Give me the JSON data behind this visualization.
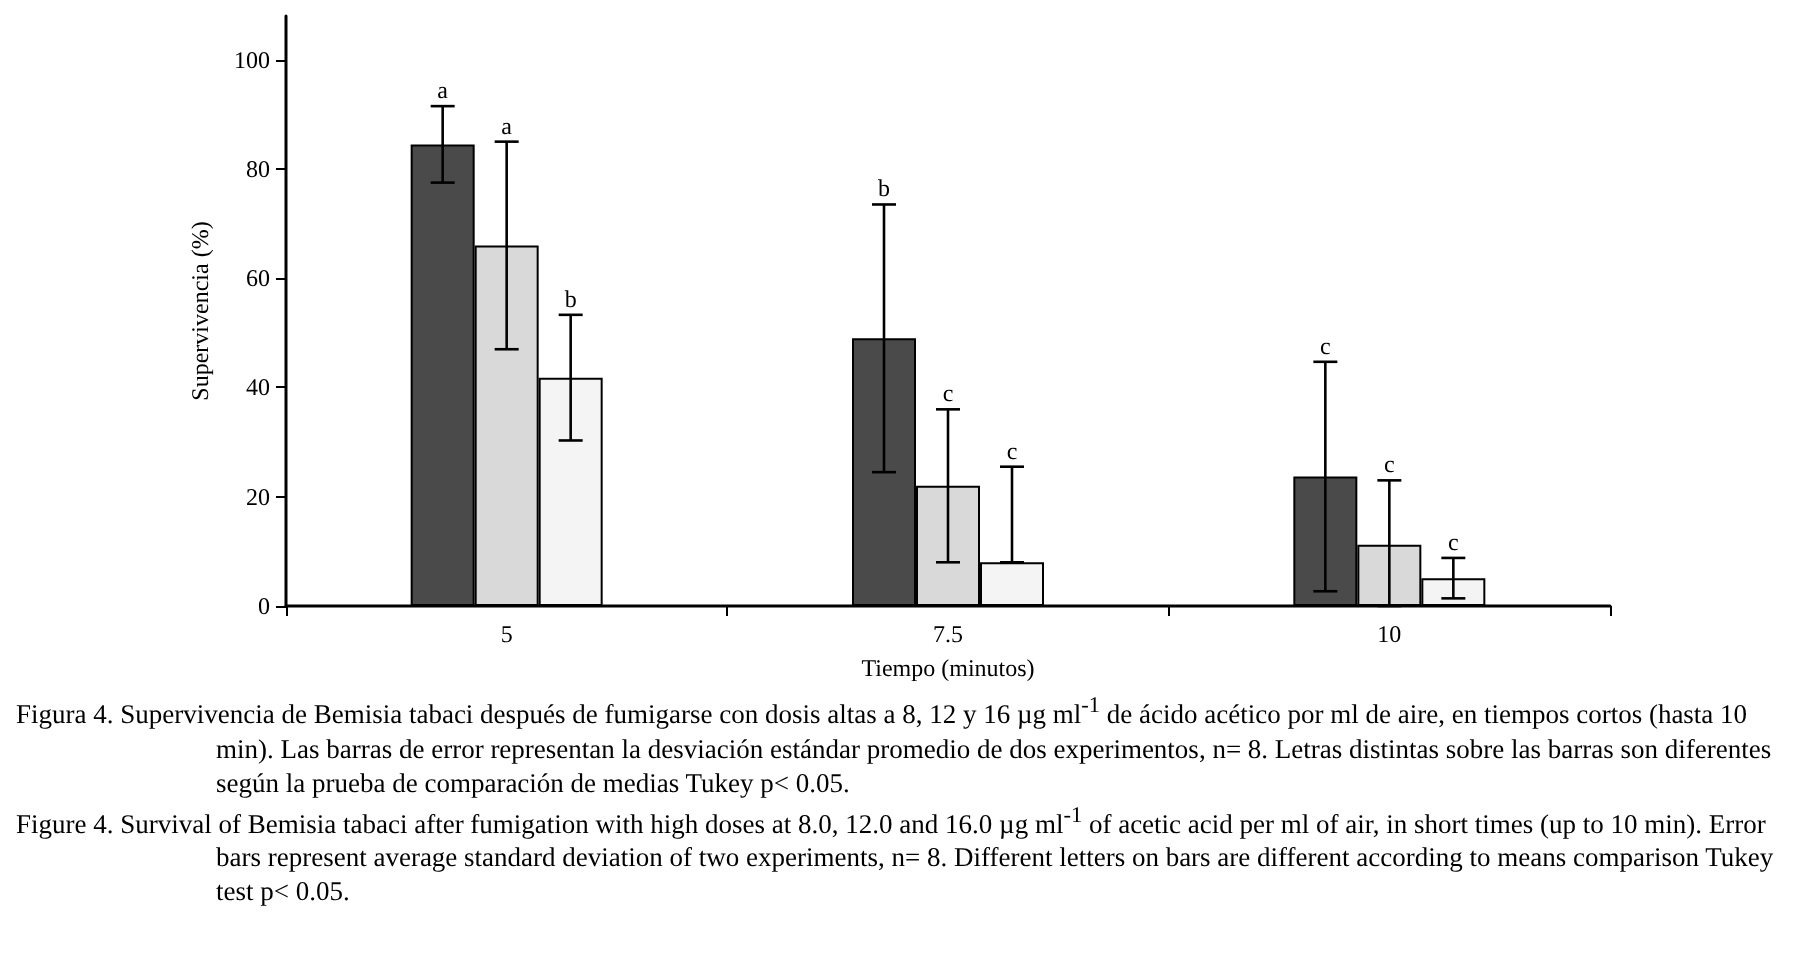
{
  "chart_data": {
    "type": "bar",
    "xlabel": "Tiempo (minutos)",
    "ylabel": "Supervivencia (%)",
    "categories": [
      "5",
      "7.5",
      "10"
    ],
    "series": [
      {
        "color": "#4a4a4a",
        "values": [
          84.5,
          49,
          23.7
        ],
        "errors": [
          7,
          24.5,
          21
        ]
      },
      {
        "color": "#d9d9d9",
        "values": [
          66,
          22,
          11.2
        ],
        "errors": [
          19,
          14,
          [
            0,
            23
          ]
        ]
      },
      {
        "color": "#f4f4f4",
        "values": [
          41.8,
          8,
          5.1
        ],
        "errors": [
          11.5,
          [
            8,
            25.5
          ],
          3.7
        ]
      }
    ],
    "ylim": [
      0,
      108
    ],
    "yticks": [
      0,
      20,
      40,
      60,
      80,
      100
    ],
    "grid": false,
    "annotations": [
      "a",
      "a",
      "b",
      "b",
      "c",
      "c",
      "c",
      "c",
      "c",
      "Figura 4. Supervivencia de Bemisia tabaci después de fumigarse con dosis altas a 8, 12 y 16 µg ml$^{-1}$ de ácido acético por ml de aire, en tiempos cortos (hasta 10 min). Las barras de error representan la desviación estándar promedio de dos experimentos, n= 8. Letras distintas sobre las barras son diferentes según la prueba de comparación de medias Tukey p< 0.05.",
      "Figure 4. Survival of Bemisia tabaci after fumigation with high doses at 8.0, 12.0 and 16.0 µg ml$^{-1}$ of acetic acid per ml of air, in short times (up to 10 min). Error bars represent average standard deviation of two experiments, n= 8. Different letters on bars are different according to means comparison Tukey test p< 0.05."
    ]
  }
}
